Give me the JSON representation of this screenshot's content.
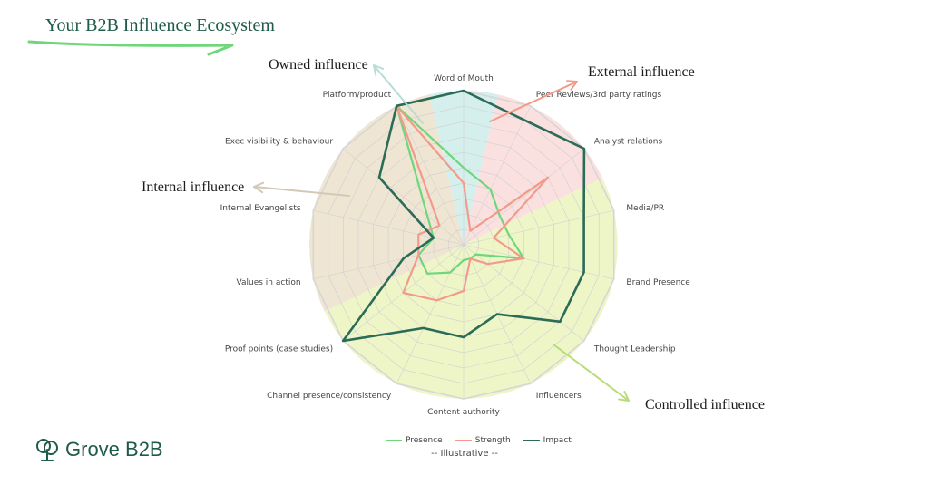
{
  "header": {
    "title": "Your B2B Influence Ecosystem"
  },
  "callouts": {
    "owned": "Owned influence",
    "external": "External influence",
    "internal": "Internal influence",
    "controlled": "Controlled influence"
  },
  "note": "-- Illustrative --",
  "brand": {
    "logo_text": "Grove B2B",
    "logo_icon": "tree-icon"
  },
  "colors": {
    "presence": "#6fd67b",
    "strength": "#f39a8a",
    "impact": "#2b6b58",
    "zone_owned": "#d5efec",
    "zone_external": "#fbe0e0",
    "zone_internal": "#efe5d3",
    "zone_controlled": "#eef6c8",
    "brand": "#1f5a4a"
  },
  "chart_data": {
    "type": "radar",
    "categories": [
      "Word of Mouth",
      "Peer Reviews/3rd party ratings",
      "Analyst relations",
      "Media/PR",
      "Brand Presence",
      "Thought Leadership",
      "Influencers",
      "Content authority",
      "Channel presence/consistency",
      "Proof points (case studies)",
      "Values in action",
      "Internal Evangelists",
      "Exec visibility & behaviour",
      "Platform/product"
    ],
    "series": [
      {
        "name": "Presence",
        "values": [
          5,
          4,
          3,
          3,
          4,
          1,
          1,
          1,
          2,
          3,
          3,
          2,
          3,
          10
        ]
      },
      {
        "name": "Strength",
        "values": [
          4,
          1,
          7,
          2,
          4,
          2,
          1,
          3,
          4,
          5,
          3,
          3,
          2,
          10
        ]
      },
      {
        "name": "Impact",
        "values": [
          10,
          9,
          10,
          8,
          8,
          8,
          5,
          6,
          6,
          10,
          4,
          2,
          7,
          10
        ]
      }
    ],
    "rmax": 10,
    "rings": 10,
    "legend": "bottom-center"
  }
}
